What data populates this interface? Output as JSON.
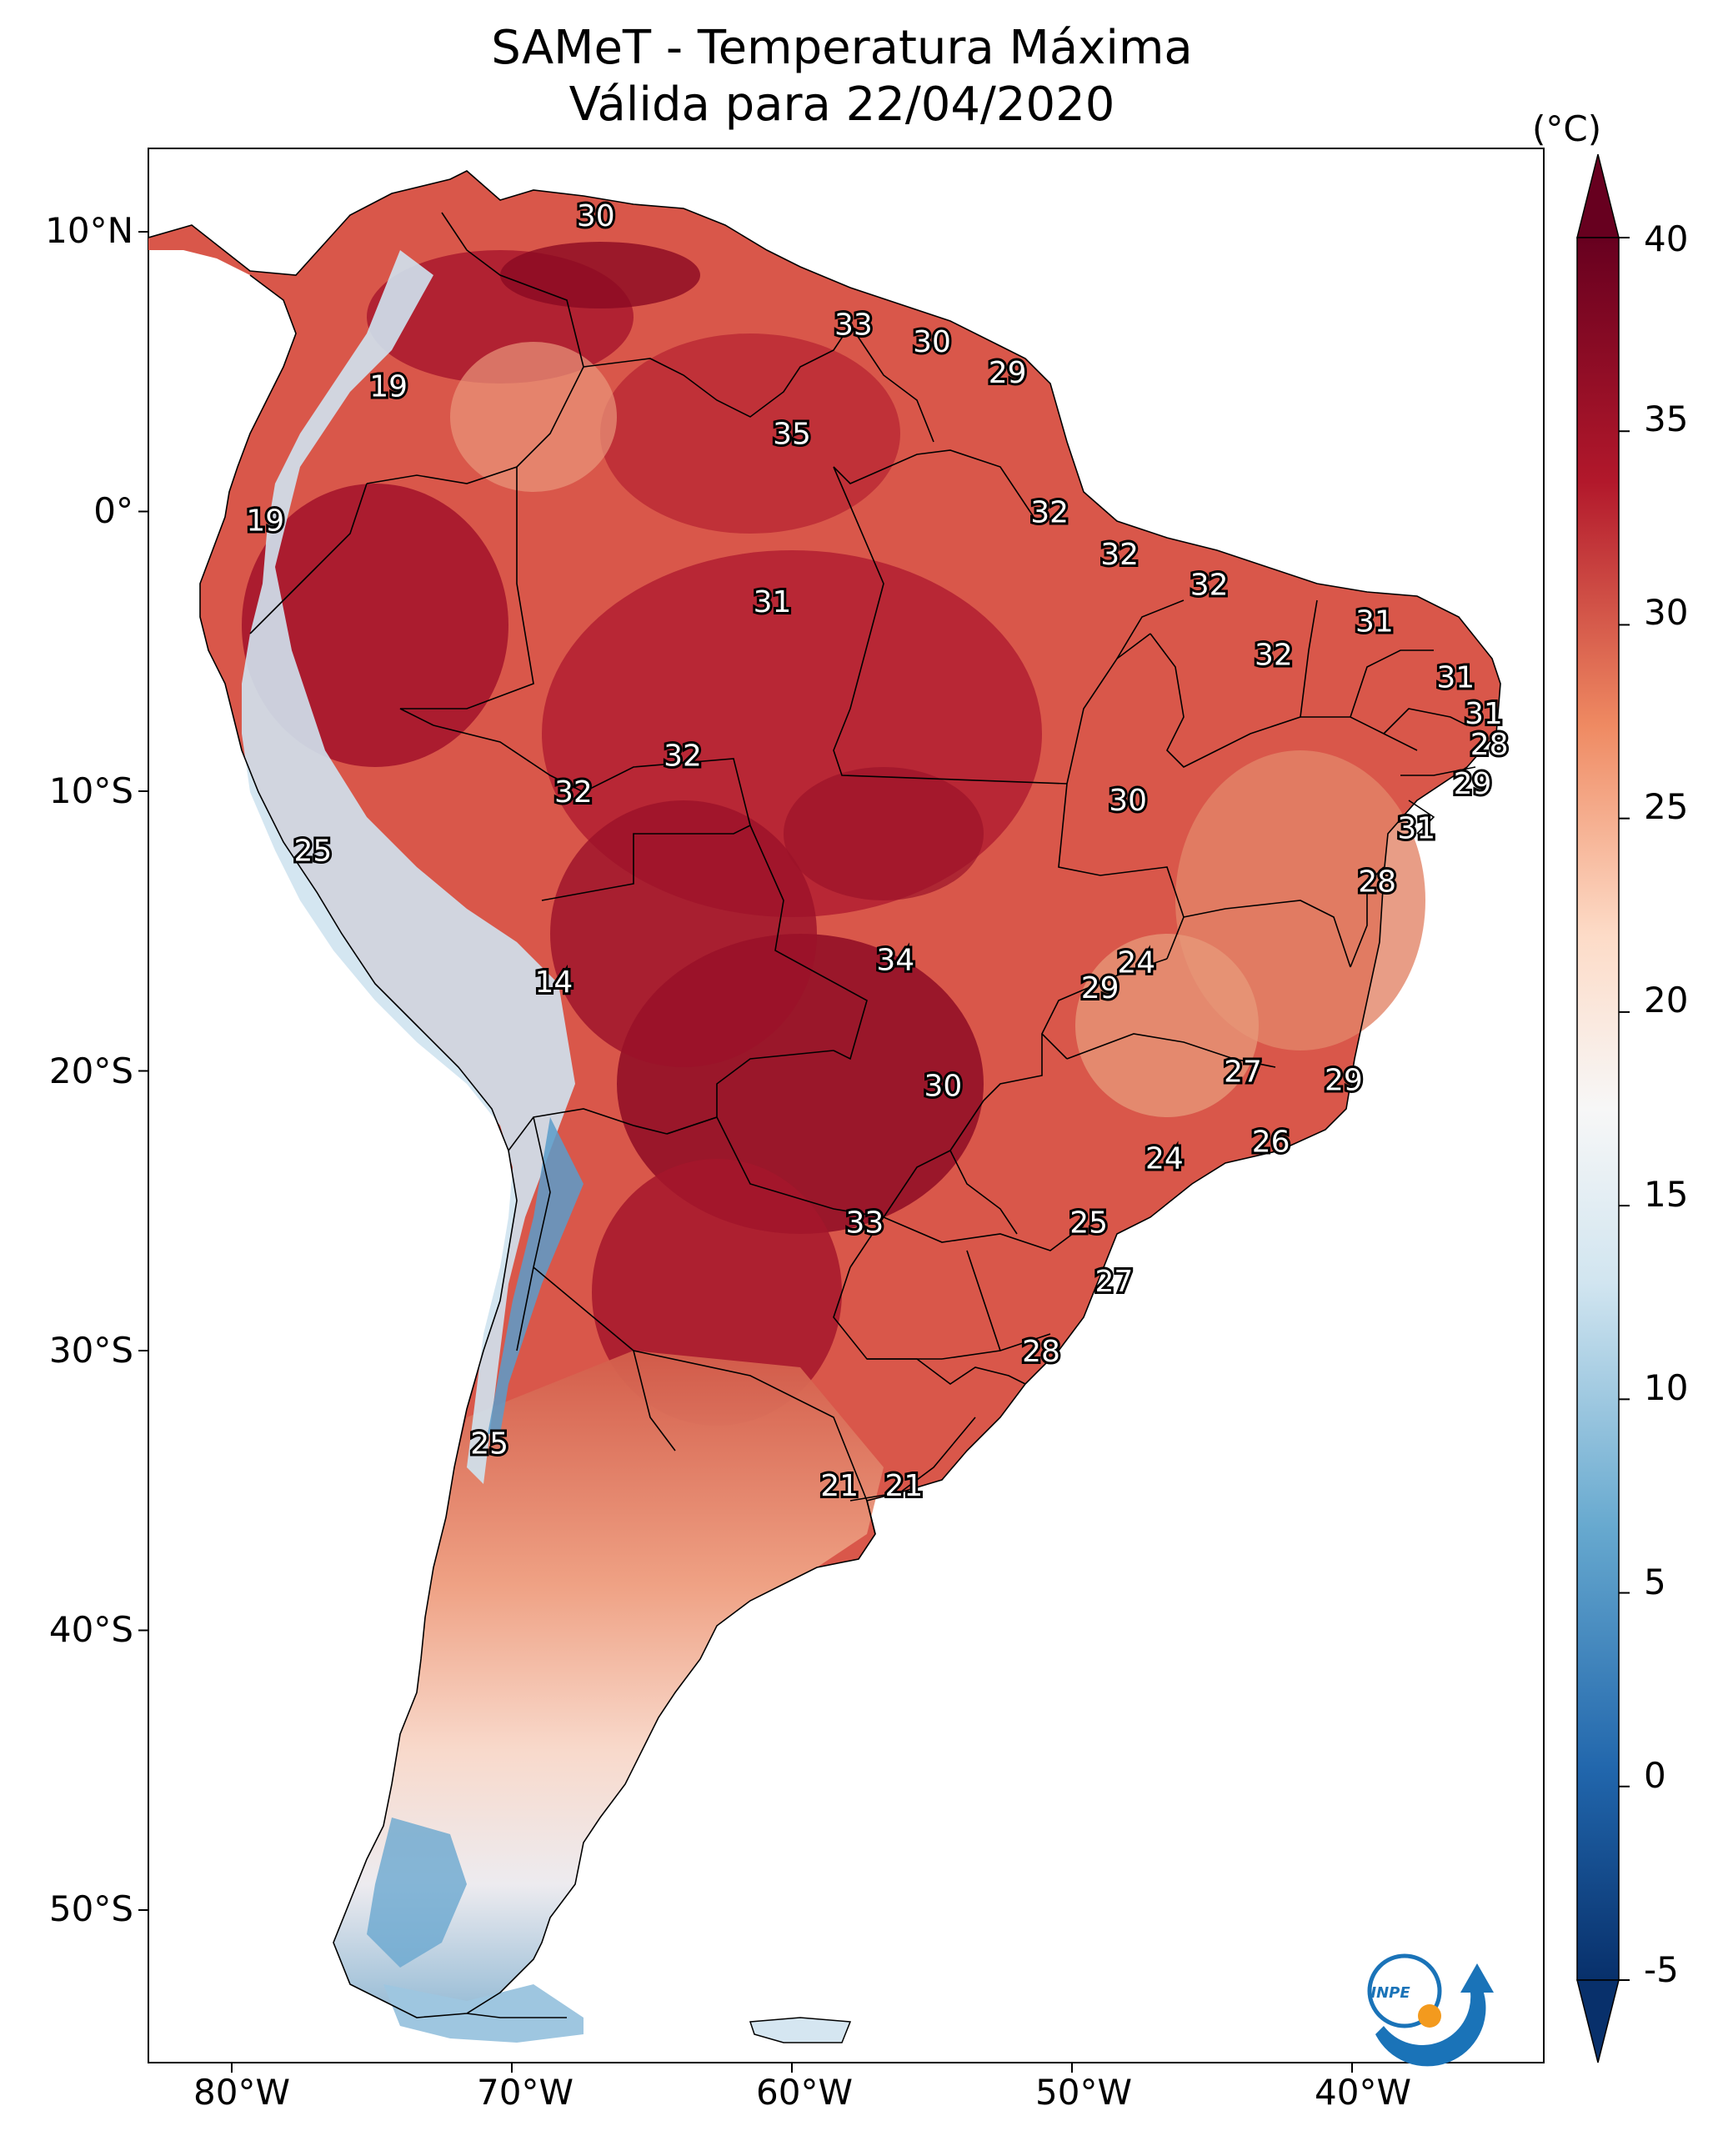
{
  "title_line1": "SAMeT - Temperatura Máxima",
  "title_line2": "Válida para 22/04/2020",
  "colorbar": {
    "unit": "(°C)",
    "ticks": [
      "40",
      "35",
      "30",
      "25",
      "20",
      "15",
      "10",
      "5",
      "0",
      "-5"
    ],
    "range": [
      -5,
      40
    ],
    "colormap": "RdBu_r",
    "colors": [
      "#08306b",
      "#2166ac",
      "#67a9cf",
      "#d1e5f0",
      "#f7f7f7",
      "#fddbc7",
      "#ef8a62",
      "#b2182b",
      "#67001f"
    ]
  },
  "axes": {
    "lat_ticks": [
      "10°N",
      "0°",
      "10°S",
      "20°S",
      "30°S",
      "40°S",
      "50°S"
    ],
    "lon_ticks": [
      "80°W",
      "70°W",
      "60°W",
      "50°W",
      "40°W"
    ]
  },
  "map_labels": [
    {
      "text": "30",
      "lon": -67.0,
      "lat": 10.6
    },
    {
      "text": "33",
      "lon": -57.8,
      "lat": 6.7
    },
    {
      "text": "30",
      "lon": -55.0,
      "lat": 6.1
    },
    {
      "text": "29",
      "lon": -52.3,
      "lat": 5.0
    },
    {
      "text": "19",
      "lon": -74.4,
      "lat": 4.5
    },
    {
      "text": "35",
      "lon": -60.0,
      "lat": 2.8
    },
    {
      "text": "19",
      "lon": -78.8,
      "lat": -0.3
    },
    {
      "text": "32",
      "lon": -50.8,
      "lat": 0.0
    },
    {
      "text": "32",
      "lon": -48.3,
      "lat": -1.5
    },
    {
      "text": "31",
      "lon": -60.7,
      "lat": -3.2
    },
    {
      "text": "32",
      "lon": -45.1,
      "lat": -2.6
    },
    {
      "text": "31",
      "lon": -39.2,
      "lat": -3.9
    },
    {
      "text": "32",
      "lon": -42.8,
      "lat": -5.1
    },
    {
      "text": "31",
      "lon": -36.3,
      "lat": -5.9
    },
    {
      "text": "31",
      "lon": -35.3,
      "lat": -7.2
    },
    {
      "text": "28",
      "lon": -35.1,
      "lat": -8.3
    },
    {
      "text": "32",
      "lon": -63.9,
      "lat": -8.7
    },
    {
      "text": "32",
      "lon": -67.8,
      "lat": -10.0
    },
    {
      "text": "30",
      "lon": -48.0,
      "lat": -10.3
    },
    {
      "text": "29",
      "lon": -35.7,
      "lat": -9.7
    },
    {
      "text": "31",
      "lon": -37.7,
      "lat": -11.3
    },
    {
      "text": "25",
      "lon": -77.1,
      "lat": -12.1
    },
    {
      "text": "28",
      "lon": -39.1,
      "lat": -13.2
    },
    {
      "text": "34",
      "lon": -56.3,
      "lat": -16.0
    },
    {
      "text": "24",
      "lon": -47.7,
      "lat": -16.1
    },
    {
      "text": "29",
      "lon": -49.0,
      "lat": -17.0
    },
    {
      "text": "14",
      "lon": -68.5,
      "lat": -16.8
    },
    {
      "text": "27",
      "lon": -43.9,
      "lat": -20.0
    },
    {
      "text": "29",
      "lon": -40.3,
      "lat": -20.3
    },
    {
      "text": "30",
      "lon": -54.6,
      "lat": -20.5
    },
    {
      "text": "26",
      "lon": -42.9,
      "lat": -22.5
    },
    {
      "text": "24",
      "lon": -46.7,
      "lat": -23.1
    },
    {
      "text": "33",
      "lon": -57.4,
      "lat": -25.4
    },
    {
      "text": "25",
      "lon": -49.4,
      "lat": -25.4
    },
    {
      "text": "27",
      "lon": -48.5,
      "lat": -27.5
    },
    {
      "text": "28",
      "lon": -51.1,
      "lat": -30.0
    },
    {
      "text": "25",
      "lon": -70.8,
      "lat": -33.3
    },
    {
      "text": "21",
      "lon": -58.3,
      "lat": -34.8
    },
    {
      "text": "21",
      "lon": -56.0,
      "lat": -34.8
    }
  ],
  "logo_text": "INPE"
}
